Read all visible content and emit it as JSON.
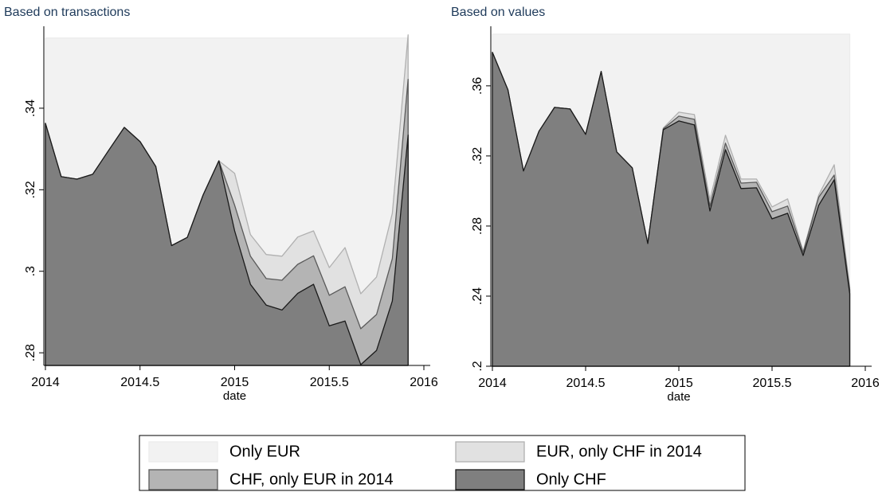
{
  "legend": "bottom",
  "chart_data": [
    {
      "type": "area",
      "title": "Based on transactions",
      "xlabel": "date",
      "x": [
        2014,
        2014.0833,
        2014.1667,
        2014.25,
        2014.3333,
        2014.4167,
        2014.5,
        2014.5833,
        2014.6667,
        2014.75,
        2014.8333,
        2014.9167,
        2015,
        2015.0833,
        2015.1667,
        2015.25,
        2015.3333,
        2015.4167,
        2015.5,
        2015.5833,
        2015.6667,
        2015.75,
        2015.8333,
        2015.9167
      ],
      "xlim": [
        2014,
        2016
      ],
      "ylim": [
        0.2769,
        0.3601
      ],
      "xticks": [
        2014,
        2014.5,
        2015,
        2015.5,
        2016
      ],
      "yticks": [
        {
          "value": 0.28,
          "label": ".28"
        },
        {
          "value": 0.3,
          "label": ".3"
        },
        {
          "value": 0.32,
          "label": ".32"
        },
        {
          "value": 0.34,
          "label": ".34"
        }
      ],
      "series": [
        {
          "name": "Only EUR",
          "color": "#f2f2f2",
          "line_color": "#ececec",
          "values": [
            0.3572,
            0.3572,
            0.3572,
            0.3572,
            0.3572,
            0.3572,
            0.3572,
            0.3572,
            0.3572,
            0.3572,
            0.3572,
            0.3572,
            0.3572,
            0.3572,
            0.3572,
            0.3572,
            0.3572,
            0.3572,
            0.3572,
            0.3572,
            0.3572,
            0.3572,
            0.3572,
            0.3572
          ]
        },
        {
          "name": "EUR, only CHF in 2014",
          "color": "#e1e1e1",
          "line_color": "#b0b0b0",
          "values": [
            0.3363,
            0.3232,
            0.3226,
            0.3238,
            0.3296,
            0.3353,
            0.3318,
            0.3257,
            0.3063,
            0.3083,
            0.3187,
            0.3271,
            0.324,
            0.309,
            0.3041,
            0.3037,
            0.3084,
            0.3099,
            0.3009,
            0.3058,
            0.2945,
            0.2986,
            0.3142,
            0.358
          ]
        },
        {
          "name": "CHF, only EUR in 2014",
          "color": "#b4b4b4",
          "line_color": "#5a5a5a",
          "values": [
            0.3363,
            0.3232,
            0.3226,
            0.3238,
            0.3296,
            0.3353,
            0.3318,
            0.3257,
            0.3063,
            0.3083,
            0.3187,
            0.3271,
            0.3162,
            0.3037,
            0.2982,
            0.2978,
            0.3017,
            0.3038,
            0.2941,
            0.2962,
            0.2859,
            0.2894,
            0.3031,
            0.3471
          ]
        },
        {
          "name": "Only CHF",
          "color": "#7f7f7f",
          "line_color": "#1a1a1a",
          "values": [
            0.3363,
            0.3232,
            0.3226,
            0.3238,
            0.3296,
            0.3353,
            0.3318,
            0.3257,
            0.3063,
            0.3083,
            0.3187,
            0.3271,
            0.3099,
            0.2968,
            0.2917,
            0.2905,
            0.2946,
            0.2968,
            0.2866,
            0.2878,
            0.2771,
            0.2806,
            0.2927,
            0.3334
          ]
        }
      ]
    },
    {
      "type": "area",
      "title": "Based on values",
      "xlabel": "date",
      "x": [
        2014,
        2014.0833,
        2014.1667,
        2014.25,
        2014.3333,
        2014.4167,
        2014.5,
        2014.5833,
        2014.6667,
        2014.75,
        2014.8333,
        2014.9167,
        2015,
        2015.0833,
        2015.1667,
        2015.25,
        2015.3333,
        2015.4167,
        2015.5,
        2015.5833,
        2015.6667,
        2015.75,
        2015.8333,
        2015.9167
      ],
      "xlim": [
        2014,
        2016
      ],
      "ylim": [
        0.2,
        0.394
      ],
      "xticks": [
        2014,
        2014.5,
        2015,
        2015.5,
        2016
      ],
      "yticks": [
        {
          "value": 0.2,
          "label": ".2"
        },
        {
          "value": 0.24,
          "label": ".24"
        },
        {
          "value": 0.28,
          "label": ".28"
        },
        {
          "value": 0.32,
          "label": ".32"
        },
        {
          "value": 0.36,
          "label": ".36"
        }
      ],
      "series": [
        {
          "name": "Only EUR",
          "color": "#f2f2f2",
          "line_color": "#ececec",
          "values": [
            0.3895,
            0.3895,
            0.3895,
            0.3895,
            0.3895,
            0.3895,
            0.3895,
            0.3895,
            0.3895,
            0.3895,
            0.3895,
            0.3895,
            0.3895,
            0.3895,
            0.3895,
            0.3895,
            0.3895,
            0.3895,
            0.3895,
            0.3895,
            0.3895,
            0.3895,
            0.3895,
            0.3895
          ]
        },
        {
          "name": "EUR, only CHF in 2014",
          "color": "#e1e1e1",
          "line_color": "#b0b0b0",
          "values": [
            0.3791,
            0.3577,
            0.3114,
            0.3341,
            0.3477,
            0.3468,
            0.3323,
            0.3682,
            0.3223,
            0.3132,
            0.27,
            0.336,
            0.345,
            0.3436,
            0.295,
            0.3318,
            0.3068,
            0.3068,
            0.2909,
            0.2955,
            0.2655,
            0.2977,
            0.315,
            0.245
          ]
        },
        {
          "name": "CHF, only EUR in 2014",
          "color": "#b4b4b4",
          "line_color": "#5a5a5a",
          "values": [
            0.3791,
            0.3577,
            0.3114,
            0.3341,
            0.3477,
            0.3468,
            0.3323,
            0.3682,
            0.3223,
            0.3132,
            0.27,
            0.3355,
            0.3427,
            0.3409,
            0.2914,
            0.3273,
            0.3045,
            0.305,
            0.2882,
            0.2914,
            0.265,
            0.2964,
            0.3091,
            0.2436
          ]
        },
        {
          "name": "Only CHF",
          "color": "#7f7f7f",
          "line_color": "#1a1a1a",
          "values": [
            0.3791,
            0.3577,
            0.3114,
            0.3341,
            0.3477,
            0.3468,
            0.3323,
            0.3682,
            0.3223,
            0.3132,
            0.27,
            0.335,
            0.34,
            0.3377,
            0.2886,
            0.3236,
            0.3014,
            0.3018,
            0.2841,
            0.2873,
            0.2632,
            0.2918,
            0.3064,
            0.2414
          ]
        }
      ]
    }
  ]
}
